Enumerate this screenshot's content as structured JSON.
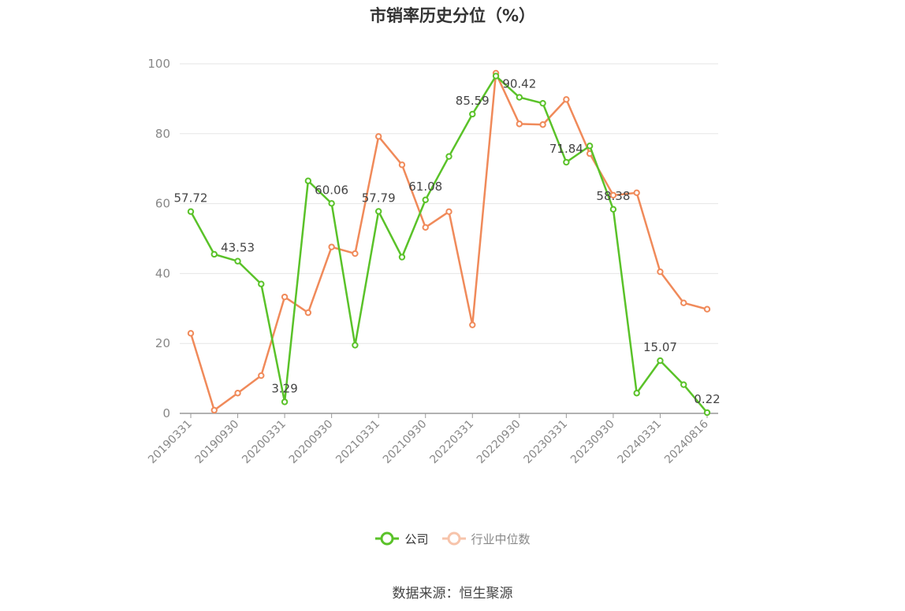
{
  "title": "市销率历史分位（%）",
  "source": "数据来源：恒生聚源",
  "colors": {
    "company": "#5ac229",
    "industry": "#f08a5a",
    "axis": "#999999",
    "grid": "#e6e6e6",
    "label": "#444444",
    "tick_text": "#888888"
  },
  "chart_data": {
    "type": "line",
    "title": "市销率历史分位（%）",
    "xlabel": "",
    "ylabel": "",
    "ylim": [
      0,
      100
    ],
    "yticks": [
      0,
      20,
      40,
      60,
      80,
      100
    ],
    "grid": true,
    "legend_position": "bottom-center",
    "x": [
      "20190331",
      "20190630",
      "20190930",
      "20191231",
      "20200331",
      "20200630",
      "20200930",
      "20201231",
      "20210331",
      "20210630",
      "20210930",
      "20211231",
      "20220331",
      "20220630",
      "20220930",
      "20221231",
      "20230331",
      "20230630",
      "20230930",
      "20231231",
      "20240331",
      "20240630",
      "20240816"
    ],
    "x_tick_labels": [
      "20190331",
      "20190930",
      "20200331",
      "20200930",
      "20210331",
      "20210930",
      "20220331",
      "20220930",
      "20230331",
      "20230930",
      "20240331",
      "20240816"
    ],
    "series": [
      {
        "name": "公司",
        "values": [
          57.72,
          45.5,
          43.53,
          37.0,
          3.29,
          66.5,
          60.06,
          19.5,
          57.79,
          44.7,
          61.08,
          73.5,
          85.59,
          96.5,
          90.42,
          88.7,
          71.84,
          76.5,
          58.38,
          5.8,
          15.07,
          8.2,
          0.22
        ]
      },
      {
        "name": "行业中位数",
        "values": [
          22.9,
          0.9,
          5.8,
          10.8,
          33.3,
          28.8,
          47.6,
          45.7,
          79.2,
          71.1,
          53.2,
          57.7,
          25.3,
          97.3,
          82.8,
          82.6,
          89.8,
          74.3,
          62.4,
          63.1,
          40.5,
          31.6,
          29.8
        ]
      }
    ],
    "data_labels": [
      {
        "series": 0,
        "index": 0,
        "text": "57.72"
      },
      {
        "series": 0,
        "index": 2,
        "text": "43.53"
      },
      {
        "series": 0,
        "index": 4,
        "text": "3.29"
      },
      {
        "series": 0,
        "index": 6,
        "text": "60.06"
      },
      {
        "series": 0,
        "index": 8,
        "text": "57.79"
      },
      {
        "series": 0,
        "index": 10,
        "text": "61.08"
      },
      {
        "series": 0,
        "index": 12,
        "text": "85.59"
      },
      {
        "series": 0,
        "index": 14,
        "text": "90.42"
      },
      {
        "series": 0,
        "index": 16,
        "text": "71.84"
      },
      {
        "series": 0,
        "index": 18,
        "text": "58.38"
      },
      {
        "series": 0,
        "index": 20,
        "text": "15.07"
      },
      {
        "series": 0,
        "index": 22,
        "text": "0.22"
      }
    ]
  },
  "legend": {
    "items": [
      {
        "label": "公司",
        "active": true
      },
      {
        "label": "行业中位数",
        "active": false
      }
    ]
  }
}
